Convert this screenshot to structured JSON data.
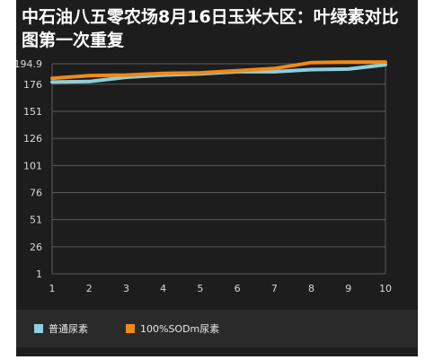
{
  "title": "中石油八五零农场8月16日玉米大区：叶绿素对比图第一次重复",
  "colors": {
    "background": "#1d1d1d",
    "grid": "#5a5a5a",
    "tick_text": "#d8d8d8"
  },
  "chart_data": {
    "type": "line",
    "title": "中石油八五零农场8月16日玉米大区：叶绿素对比图第一次重复",
    "x": [
      1,
      2,
      3,
      4,
      5,
      6,
      7,
      8,
      9,
      10
    ],
    "xlim": [
      1,
      10
    ],
    "ylim": [
      1,
      194.9
    ],
    "yticks": [
      "1",
      "26",
      "51",
      "76",
      "101",
      "126",
      "151",
      "176",
      "194.9"
    ],
    "xticks": [
      "1",
      "2",
      "3",
      "4",
      "5",
      "6",
      "7",
      "8",
      "9",
      "10"
    ],
    "grid": true,
    "legend_position": "bottom",
    "series": [
      {
        "name": "普通尿素",
        "color": "#8ecfe0",
        "values": [
          178.0,
          178.5,
          182.5,
          184.5,
          185.5,
          187.5,
          187.5,
          189.5,
          190.0,
          194.0
        ]
      },
      {
        "name": "100%SODm尿素",
        "color": "#f08a16",
        "values": [
          181.5,
          184.0,
          184.5,
          186.0,
          186.5,
          188.5,
          190.5,
          196.0,
          196.5,
          196.5
        ]
      }
    ]
  }
}
